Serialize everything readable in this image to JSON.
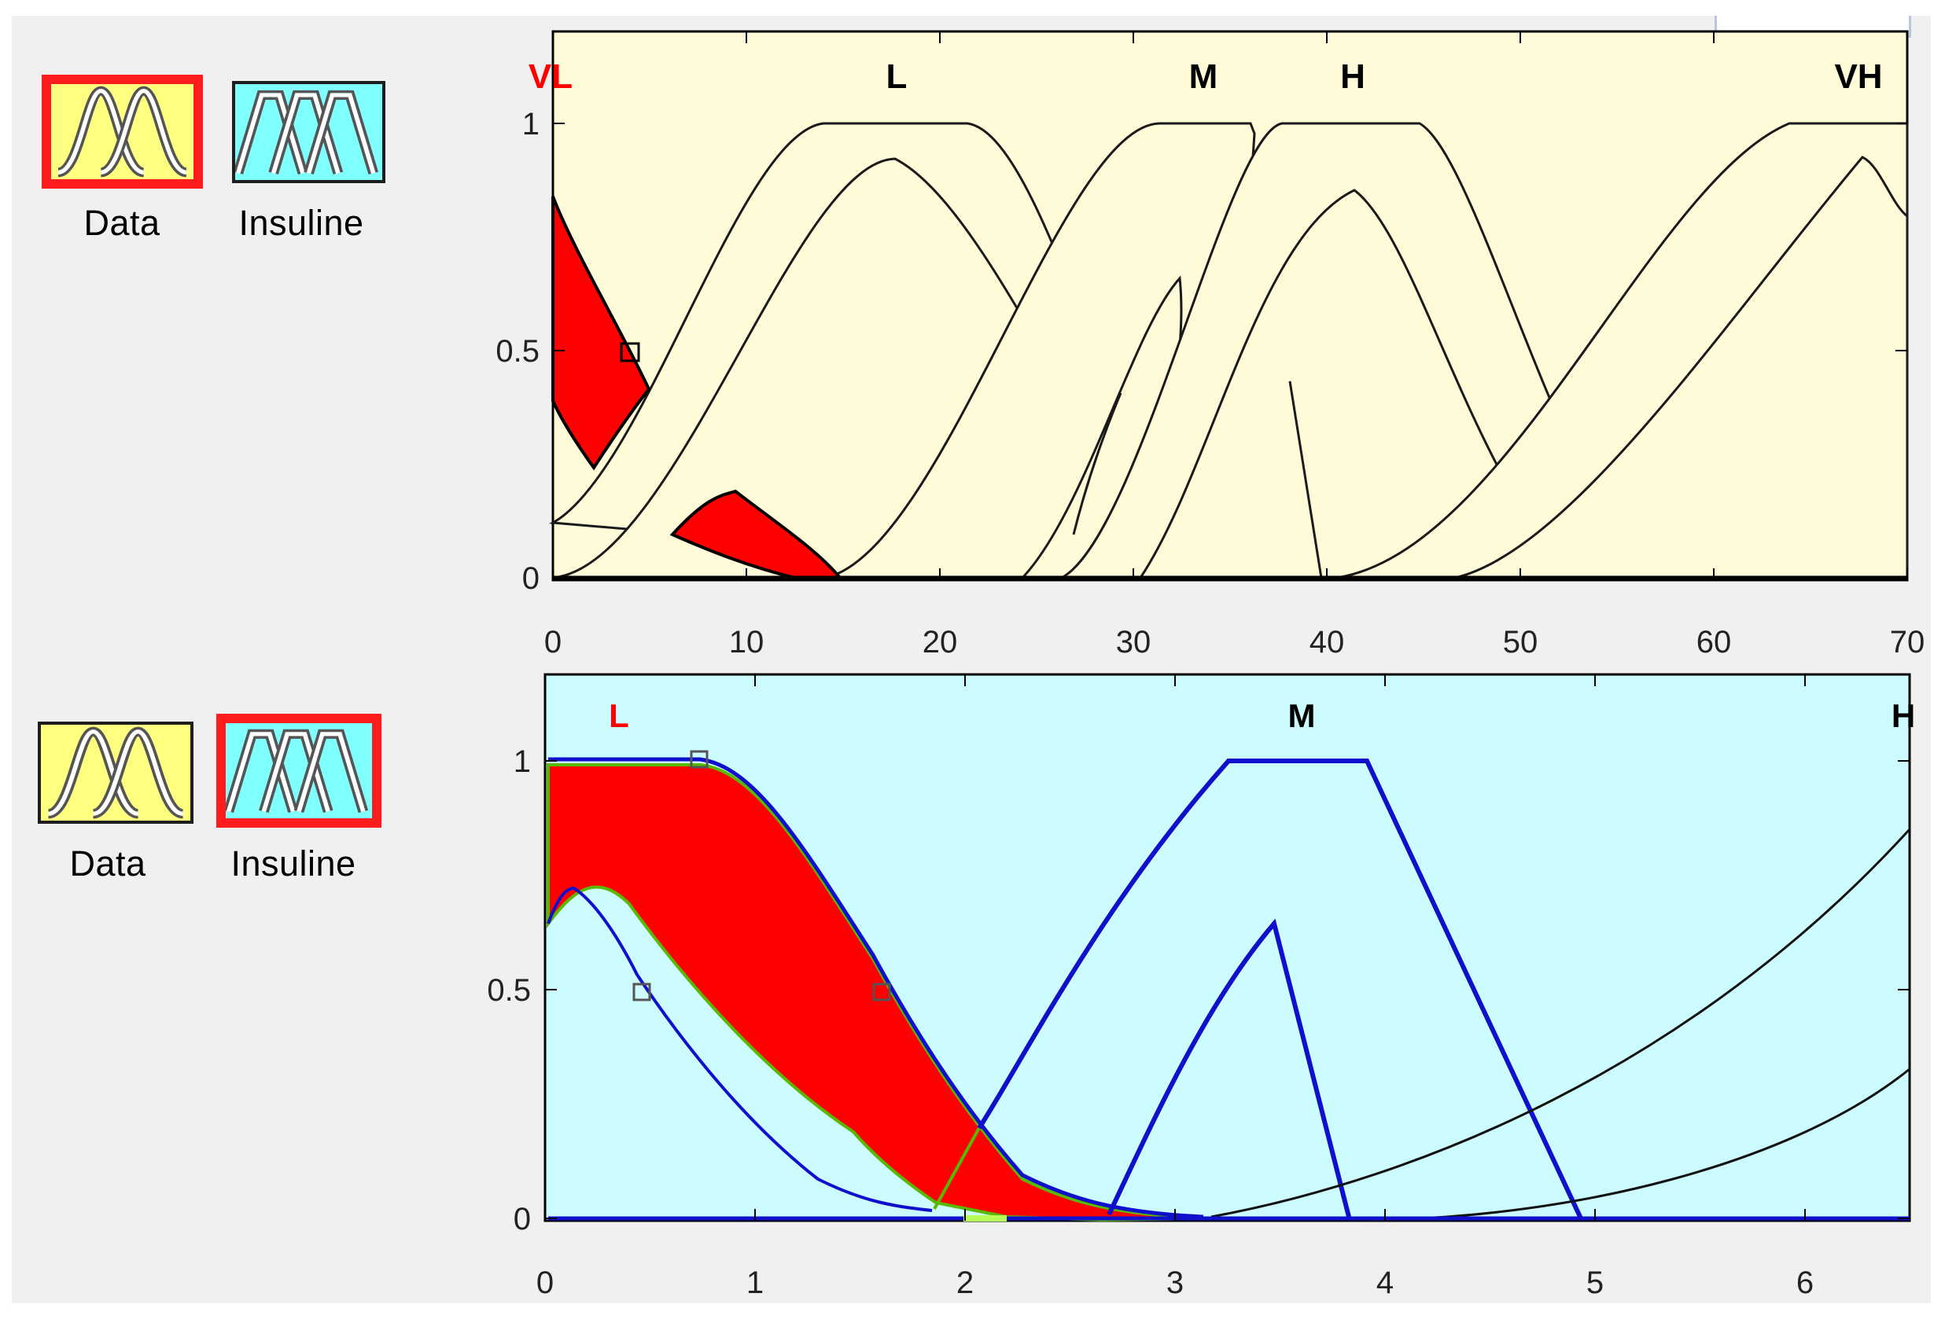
{
  "input_panel": {
    "variables": [
      {
        "label": "Data",
        "selected": true,
        "tile_color": "#ffff80",
        "icon": "gaussian-mf-icon"
      },
      {
        "label": "Insuline",
        "selected": false,
        "tile_color": "#80ffff",
        "icon": "trapezoid-mf-icon"
      }
    ],
    "plot": {
      "background": "#fffbd9",
      "x_ticks": [
        "0",
        "10",
        "20",
        "30",
        "40",
        "50",
        "60",
        "70"
      ],
      "y_ticks": [
        "0",
        "0.5",
        "1"
      ],
      "mf_labels": [
        {
          "text": "VL",
          "active": true
        },
        {
          "text": "L",
          "active": false
        },
        {
          "text": "M",
          "active": false
        },
        {
          "text": "H",
          "active": false
        },
        {
          "text": "VH",
          "active": false
        }
      ],
      "selected_mf": "VL",
      "selected_color": "#ff0000"
    }
  },
  "output_panel": {
    "variables": [
      {
        "label": "Data",
        "selected": false,
        "tile_color": "#ffff80",
        "icon": "gaussian-mf-icon"
      },
      {
        "label": "Insuline",
        "selected": true,
        "tile_color": "#80ffff",
        "icon": "trapezoid-mf-icon"
      }
    ],
    "plot": {
      "background": "#ccfcff",
      "x_ticks": [
        "0",
        "1",
        "2",
        "3",
        "4",
        "5",
        "6"
      ],
      "y_ticks": [
        "0",
        "0.5",
        "1"
      ],
      "mf_labels": [
        {
          "text": "L",
          "active": true
        },
        {
          "text": "M",
          "active": false
        },
        {
          "text": "H",
          "active": false
        }
      ],
      "selected_mf": "L",
      "selected_color": "#ff0000",
      "mf_line_color": "#1010cc"
    }
  }
}
